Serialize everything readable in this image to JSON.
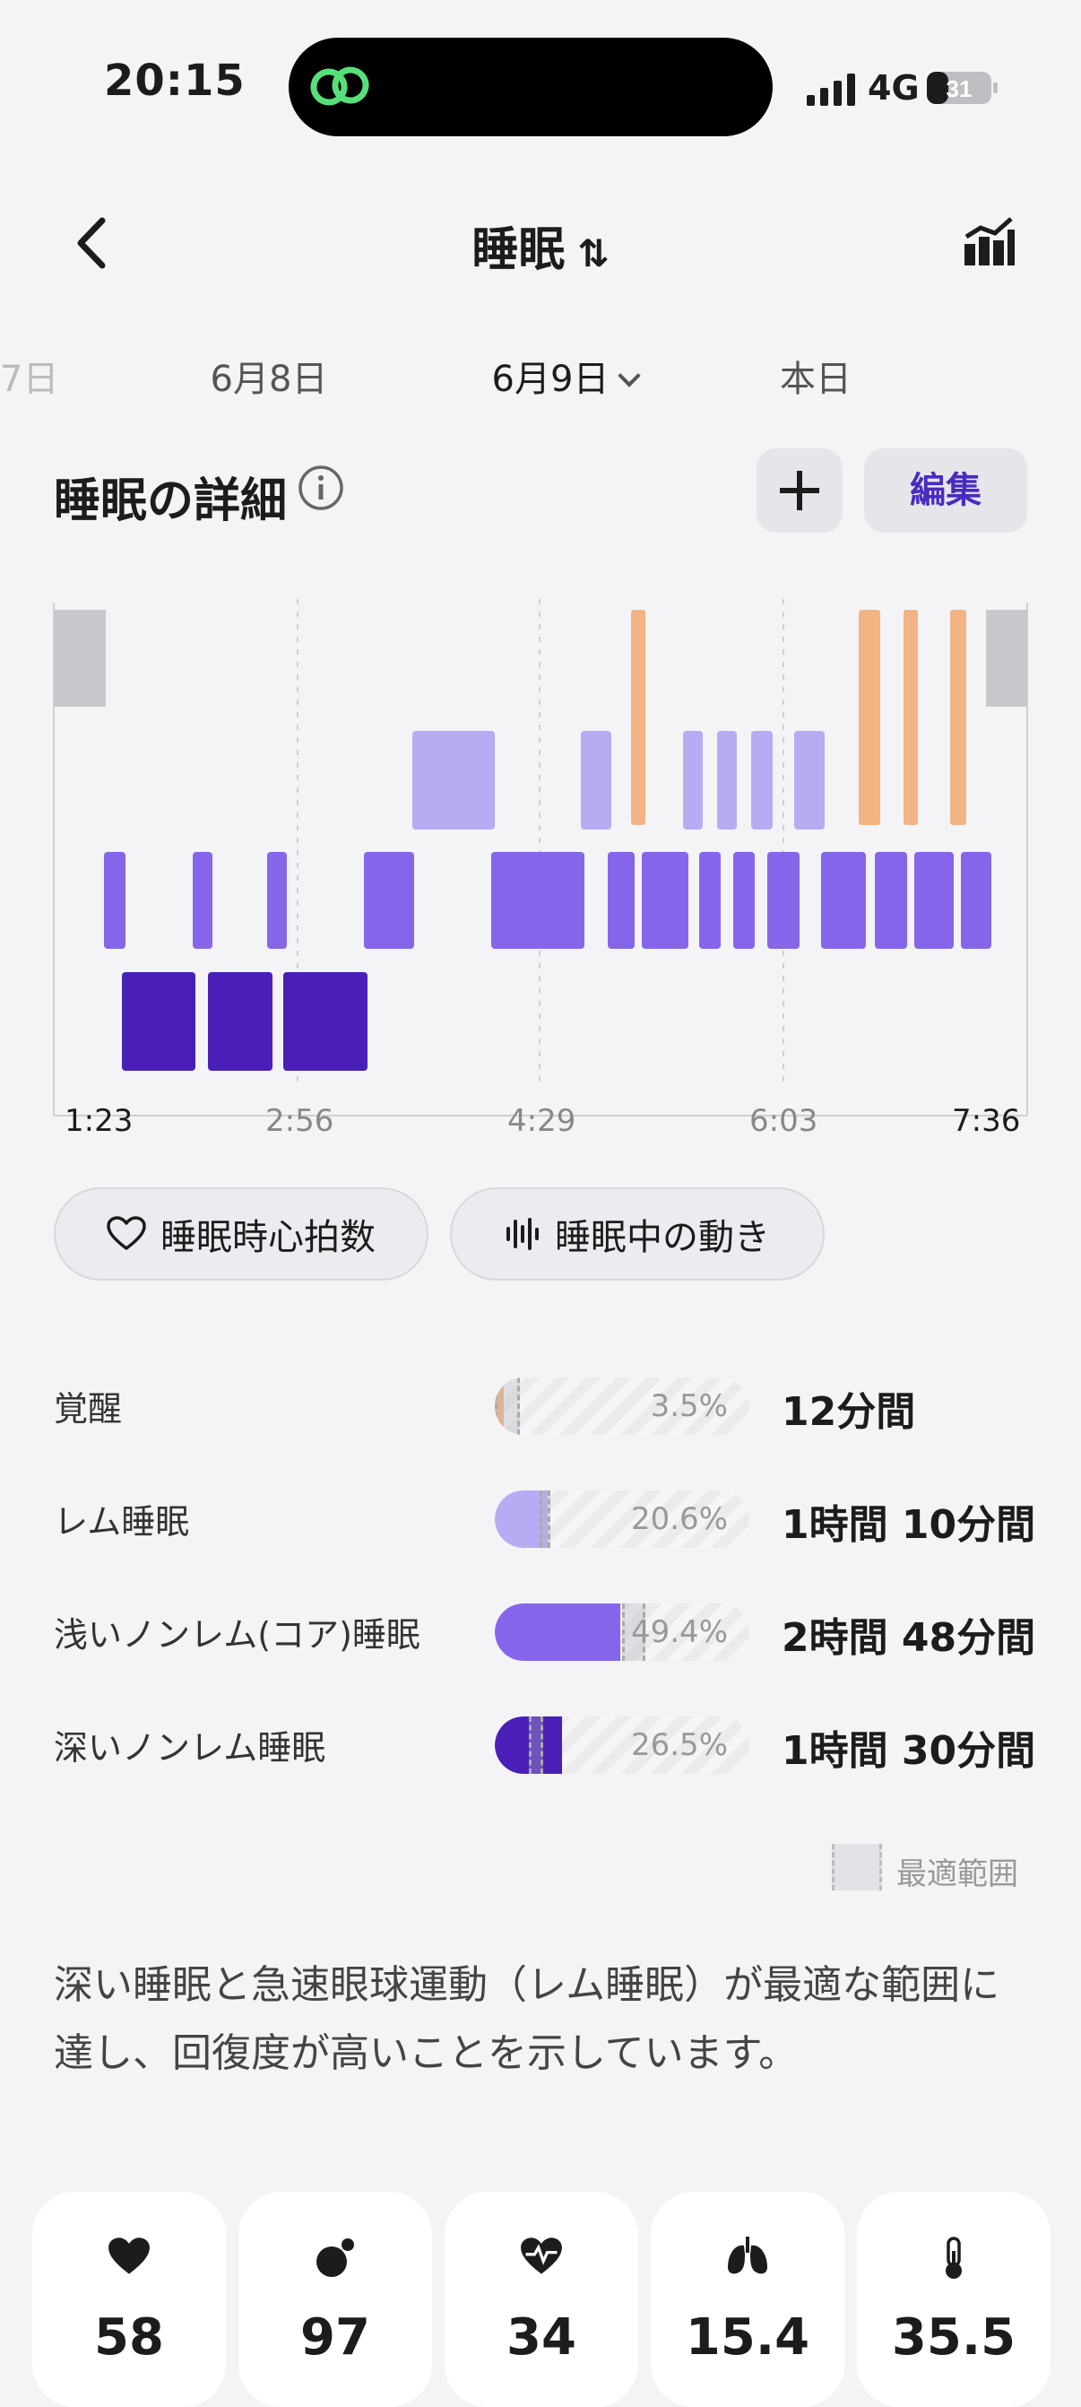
{
  "status_bar": {
    "time": "20:15",
    "network": "4G",
    "battery": "31"
  },
  "nav": {
    "title": "睡眠",
    "sort_icon": "⇅"
  },
  "dates": {
    "prev_partial": "7日",
    "items": [
      "6月8日",
      "6月9日",
      "本日"
    ],
    "selected": "6月9日"
  },
  "section": {
    "title": "睡眠の詳細",
    "edit_label": "編集"
  },
  "hypnogram": {
    "time_labels": [
      "1:23",
      "2:56",
      "4:29",
      "6:03",
      "7:36"
    ]
  },
  "buttons": {
    "heart_rate": "睡眠時心拍数",
    "motion": "睡眠中の動き"
  },
  "stages": [
    {
      "name": "覚醒",
      "percent": "3.5%",
      "duration": "12分間",
      "fill": 0.035,
      "color": "#f2b483"
    },
    {
      "name": "レム睡眠",
      "percent": "20.6%",
      "duration": "1時間 10分間",
      "fill": 0.206,
      "color": "#b8abf3"
    },
    {
      "name": "浅いノンレム(コア)睡眠",
      "percent": "49.4%",
      "duration": "2時間 48分間",
      "fill": 0.494,
      "color": "#8566eb"
    },
    {
      "name": "深いノンレム睡眠",
      "percent": "26.5%",
      "duration": "1時間 30分間",
      "fill": 0.265,
      "color": "#4a1fb8"
    }
  ],
  "legend": {
    "optimal": "最適範囲"
  },
  "summary": "深い睡眠と急速眼球運動（レム睡眠）が最適な範囲に達し、回復度が高いことを示しています。",
  "metrics": [
    {
      "icon": "heart-icon",
      "value": "58"
    },
    {
      "icon": "oxygen-icon",
      "value": "97"
    },
    {
      "icon": "hrv-icon",
      "value": "34"
    },
    {
      "icon": "lungs-icon",
      "value": "15.4"
    },
    {
      "icon": "thermometer-icon",
      "value": "35.5"
    }
  ]
}
